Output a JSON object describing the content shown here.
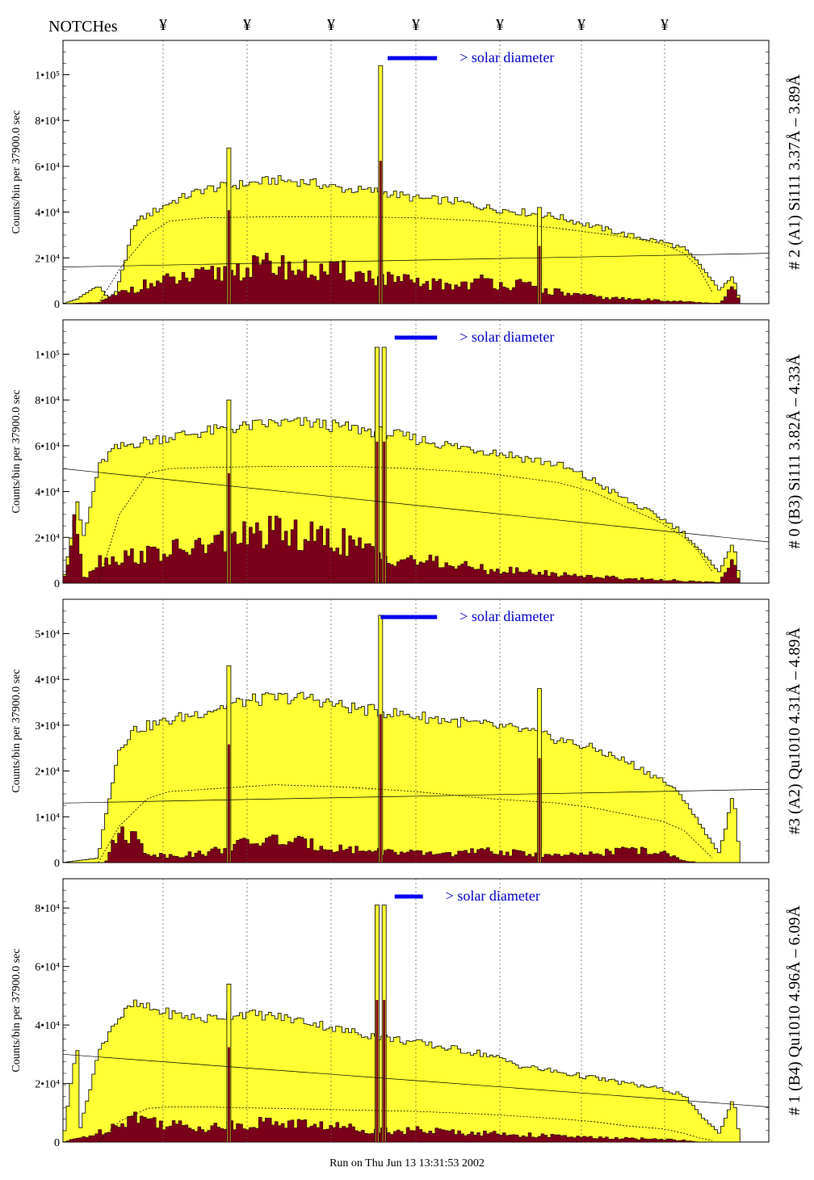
{
  "header": {
    "title": "NOTCHes",
    "notch_symbol": "¥",
    "notch_count": 7
  },
  "footer": {
    "run_text": "Run on Thu Jun 13 13:31:53 2002"
  },
  "colors": {
    "fill_upper": "#ffff33",
    "fill_lower": "#7a0019",
    "annotation_blue": "#0000cc",
    "bar_blue": "#0000ee"
  },
  "chart_data": [
    {
      "type": "area",
      "panel_label": "# 2 (A1) Si111  3.37Å – 3.89Å",
      "ylabel": "Counts/bin per  37900.0 sec",
      "yticks": [
        {
          "value": 0,
          "label": "0"
        },
        {
          "value": 20000,
          "label": "2•10⁴"
        },
        {
          "value": 40000,
          "label": "4•10⁴"
        },
        {
          "value": 60000,
          "label": "6•10⁴"
        },
        {
          "value": 80000,
          "label": "8•10⁴"
        },
        {
          "value": 100000,
          "label": "1•10⁵"
        }
      ],
      "ylim": [
        0,
        115000
      ],
      "xlim": [
        0,
        1
      ],
      "annotation": "> solar diameter",
      "solar_bar": [
        0.46,
        0.53
      ],
      "upper_profile": {
        "x": [
          0.0,
          0.02,
          0.05,
          0.07,
          0.09,
          0.1,
          0.15,
          0.2,
          0.25,
          0.3,
          0.35,
          0.4,
          0.45,
          0.5,
          0.55,
          0.6,
          0.65,
          0.7,
          0.75,
          0.8,
          0.85,
          0.88,
          0.9,
          0.93,
          0.95,
          0.96,
          1.0
        ],
        "y": [
          0,
          2000,
          8000,
          500,
          20000,
          35000,
          44000,
          50000,
          52000,
          54000,
          53000,
          50000,
          49000,
          46000,
          45000,
          42000,
          40000,
          38000,
          34000,
          30000,
          27000,
          24000,
          18000,
          6000,
          12000,
          0,
          0
        ]
      },
      "lower_profile": {
        "x": [
          0.0,
          0.05,
          0.1,
          0.15,
          0.2,
          0.25,
          0.3,
          0.35,
          0.4,
          0.45,
          0.5,
          0.55,
          0.6,
          0.65,
          0.7,
          0.75,
          0.8,
          0.85,
          0.88,
          0.9,
          0.93,
          0.95,
          0.96,
          1.0
        ],
        "y": [
          0,
          500,
          7000,
          10000,
          12000,
          15000,
          17000,
          14000,
          14000,
          11000,
          9000,
          8000,
          10000,
          8000,
          5000,
          3000,
          2000,
          1500,
          1000,
          500,
          200,
          7000,
          0,
          0
        ]
      },
      "dotted_curve": {
        "x": [
          0.05,
          0.08,
          0.12,
          0.15,
          0.2,
          0.3,
          0.4,
          0.5,
          0.6,
          0.7,
          0.75,
          0.8,
          0.85,
          0.88,
          0.9,
          0.92
        ],
        "y": [
          0,
          15000,
          30000,
          36000,
          37500,
          38000,
          38000,
          37500,
          36000,
          33000,
          31000,
          29000,
          26000,
          22000,
          16000,
          5000
        ]
      },
      "solid_line": {
        "x": [
          0.0,
          1.0
        ],
        "y": [
          16000,
          22000
        ]
      },
      "spikes": [
        {
          "x": 0.235,
          "y": 68000
        },
        {
          "x": 0.45,
          "y": 104000
        },
        {
          "x": 0.675,
          "y": 42000
        }
      ]
    },
    {
      "type": "area",
      "panel_label": "# 0 (B3) Si111  3.82Å – 4.33Å",
      "ylabel": "Counts/bin per  37900.0 sec",
      "yticks": [
        {
          "value": 0,
          "label": "0"
        },
        {
          "value": 20000,
          "label": "2•10⁴"
        },
        {
          "value": 40000,
          "label": "4•10⁴"
        },
        {
          "value": 60000,
          "label": "6•10⁴"
        },
        {
          "value": 80000,
          "label": "8•10⁴"
        },
        {
          "value": 100000,
          "label": "1•10⁵"
        }
      ],
      "ylim": [
        0,
        115000
      ],
      "xlim": [
        0,
        1
      ],
      "annotation": "> solar diameter",
      "solar_bar": [
        0.47,
        0.53
      ],
      "upper_profile": {
        "x": [
          0.0,
          0.02,
          0.03,
          0.05,
          0.07,
          0.1,
          0.15,
          0.2,
          0.25,
          0.3,
          0.35,
          0.4,
          0.45,
          0.5,
          0.55,
          0.6,
          0.65,
          0.7,
          0.75,
          0.8,
          0.85,
          0.88,
          0.9,
          0.93,
          0.95,
          0.96,
          1.0
        ],
        "y": [
          0,
          35000,
          20000,
          50000,
          58000,
          61000,
          64000,
          66000,
          68000,
          70000,
          70000,
          68000,
          66000,
          63000,
          60000,
          58000,
          55000,
          52000,
          45000,
          36000,
          28000,
          22000,
          15000,
          5000,
          18000,
          0,
          0
        ]
      },
      "lower_profile": {
        "x": [
          0.0,
          0.02,
          0.03,
          0.05,
          0.1,
          0.15,
          0.2,
          0.25,
          0.3,
          0.35,
          0.4,
          0.45,
          0.5,
          0.55,
          0.6,
          0.65,
          0.7,
          0.75,
          0.8,
          0.85,
          0.88,
          0.9,
          0.93,
          0.95,
          0.96,
          1.0
        ],
        "y": [
          0,
          28000,
          2000,
          10000,
          12000,
          14000,
          16000,
          20000,
          22000,
          20000,
          18000,
          12000,
          10000,
          8000,
          6000,
          5000,
          4000,
          3000,
          2000,
          1500,
          1000,
          600,
          400,
          10000,
          0,
          0
        ]
      },
      "dotted_curve": {
        "x": [
          0.05,
          0.08,
          0.12,
          0.15,
          0.2,
          0.3,
          0.4,
          0.5,
          0.6,
          0.7,
          0.75,
          0.8,
          0.85,
          0.88,
          0.9,
          0.92
        ],
        "y": [
          0,
          30000,
          48000,
          50000,
          50500,
          51000,
          51000,
          50000,
          48000,
          44000,
          40000,
          33000,
          26000,
          20000,
          14000,
          5000
        ]
      },
      "solid_line": {
        "x": [
          0.0,
          1.0
        ],
        "y": [
          50000,
          18000
        ]
      },
      "spikes": [
        {
          "x": 0.235,
          "y": 80000
        },
        {
          "x": 0.445,
          "y": 103000
        },
        {
          "x": 0.455,
          "y": 103000
        }
      ]
    },
    {
      "type": "area",
      "panel_label": "#3 (A2) Qu1010  4.31Å – 4.89Å",
      "ylabel": "Counts/bin per  37900.0 sec",
      "yticks": [
        {
          "value": 0,
          "label": "0"
        },
        {
          "value": 10000,
          "label": "1•10⁴"
        },
        {
          "value": 20000,
          "label": "2•10⁴"
        },
        {
          "value": 30000,
          "label": "3•10⁴"
        },
        {
          "value": 40000,
          "label": "4•10⁴"
        },
        {
          "value": 50000,
          "label": "5•10⁴"
        }
      ],
      "ylim": [
        0,
        57500
      ],
      "xlim": [
        0,
        1
      ],
      "annotation": "> solar diameter",
      "solar_bar": [
        0.45,
        0.53
      ],
      "upper_profile": {
        "x": [
          0.0,
          0.05,
          0.06,
          0.08,
          0.1,
          0.15,
          0.2,
          0.25,
          0.3,
          0.35,
          0.4,
          0.45,
          0.5,
          0.55,
          0.6,
          0.65,
          0.7,
          0.75,
          0.8,
          0.85,
          0.88,
          0.9,
          0.93,
          0.95,
          0.96,
          1.0
        ],
        "y": [
          0,
          1000,
          10000,
          25000,
          29000,
          31000,
          33000,
          35000,
          36000,
          36000,
          34000,
          33000,
          32000,
          31000,
          30000,
          29000,
          27000,
          25000,
          22000,
          18000,
          14000,
          9000,
          2000,
          15000,
          0,
          0
        ]
      },
      "lower_profile": {
        "x": [
          0.0,
          0.06,
          0.08,
          0.1,
          0.12,
          0.15,
          0.2,
          0.25,
          0.3,
          0.35,
          0.4,
          0.45,
          0.5,
          0.55,
          0.6,
          0.65,
          0.7,
          0.75,
          0.8,
          0.85,
          0.88,
          0.9,
          1.0
        ],
        "y": [
          0,
          0,
          7000,
          6000,
          2000,
          1500,
          2000,
          4000,
          5000,
          4000,
          3000,
          2500,
          2000,
          2000,
          2500,
          2000,
          1500,
          1800,
          3000,
          2000,
          500,
          0,
          0
        ]
      },
      "dotted_curve": {
        "x": [
          0.05,
          0.08,
          0.12,
          0.15,
          0.2,
          0.3,
          0.4,
          0.5,
          0.6,
          0.7,
          0.75,
          0.8,
          0.85,
          0.88,
          0.9,
          0.92
        ],
        "y": [
          0,
          8000,
          14000,
          15500,
          16000,
          17000,
          16500,
          15500,
          14000,
          13000,
          12000,
          10500,
          9000,
          7000,
          4000,
          1000
        ]
      },
      "solid_line": {
        "x": [
          0.0,
          1.0
        ],
        "y": [
          13000,
          16000
        ]
      },
      "spikes": [
        {
          "x": 0.235,
          "y": 43000
        },
        {
          "x": 0.45,
          "y": 54000
        },
        {
          "x": 0.675,
          "y": 38000
        }
      ]
    },
    {
      "type": "area",
      "panel_label": "# 1 (B4) Qu1010 4.96Å – 6.09Å",
      "ylabel": "Counts/bin per  37900.0 sec",
      "yticks": [
        {
          "value": 0,
          "label": "0"
        },
        {
          "value": 20000,
          "label": "2•10⁴"
        },
        {
          "value": 40000,
          "label": "4•10⁴"
        },
        {
          "value": 60000,
          "label": "6•10⁴"
        },
        {
          "value": 80000,
          "label": "8•10⁴"
        }
      ],
      "ylim": [
        0,
        90000
      ],
      "xlim": [
        0,
        1
      ],
      "annotation": "> solar diameter",
      "solar_bar": [
        0.47,
        0.51
      ],
      "upper_profile": {
        "x": [
          0.0,
          0.02,
          0.025,
          0.05,
          0.07,
          0.1,
          0.15,
          0.2,
          0.25,
          0.3,
          0.35,
          0.4,
          0.45,
          0.5,
          0.55,
          0.6,
          0.65,
          0.7,
          0.75,
          0.8,
          0.85,
          0.88,
          0.9,
          0.93,
          0.95,
          0.96,
          1.0
        ],
        "y": [
          0,
          35000,
          5000,
          30000,
          40000,
          47000,
          44000,
          42000,
          44000,
          43000,
          41000,
          38000,
          36000,
          34000,
          32000,
          30000,
          26000,
          24000,
          22000,
          20000,
          18000,
          16000,
          10000,
          3000,
          15000,
          0,
          0
        ]
      },
      "lower_profile": {
        "x": [
          0.0,
          0.05,
          0.1,
          0.15,
          0.2,
          0.25,
          0.3,
          0.35,
          0.4,
          0.45,
          0.5,
          0.55,
          0.6,
          0.65,
          0.7,
          0.75,
          0.8,
          0.85,
          0.88,
          0.9,
          1.0
        ],
        "y": [
          0,
          3000,
          9000,
          6000,
          5000,
          6000,
          7000,
          6000,
          5000,
          4000,
          4000,
          3500,
          3000,
          2500,
          2000,
          1500,
          1200,
          1000,
          600,
          0,
          0
        ]
      },
      "dotted_curve": {
        "x": [
          0.05,
          0.08,
          0.12,
          0.15,
          0.2,
          0.3,
          0.4,
          0.5,
          0.6,
          0.7,
          0.75,
          0.8,
          0.85,
          0.88,
          0.9,
          0.92
        ],
        "y": [
          0,
          7000,
          11500,
          12000,
          12000,
          11500,
          11000,
          10500,
          9500,
          8000,
          7000,
          5500,
          4500,
          3000,
          1500,
          500
        ]
      },
      "solid_line": {
        "x": [
          0.0,
          1.0
        ],
        "y": [
          30000,
          12000
        ]
      },
      "spikes": [
        {
          "x": 0.235,
          "y": 54000
        },
        {
          "x": 0.445,
          "y": 81000
        },
        {
          "x": 0.455,
          "y": 81000
        }
      ]
    }
  ]
}
